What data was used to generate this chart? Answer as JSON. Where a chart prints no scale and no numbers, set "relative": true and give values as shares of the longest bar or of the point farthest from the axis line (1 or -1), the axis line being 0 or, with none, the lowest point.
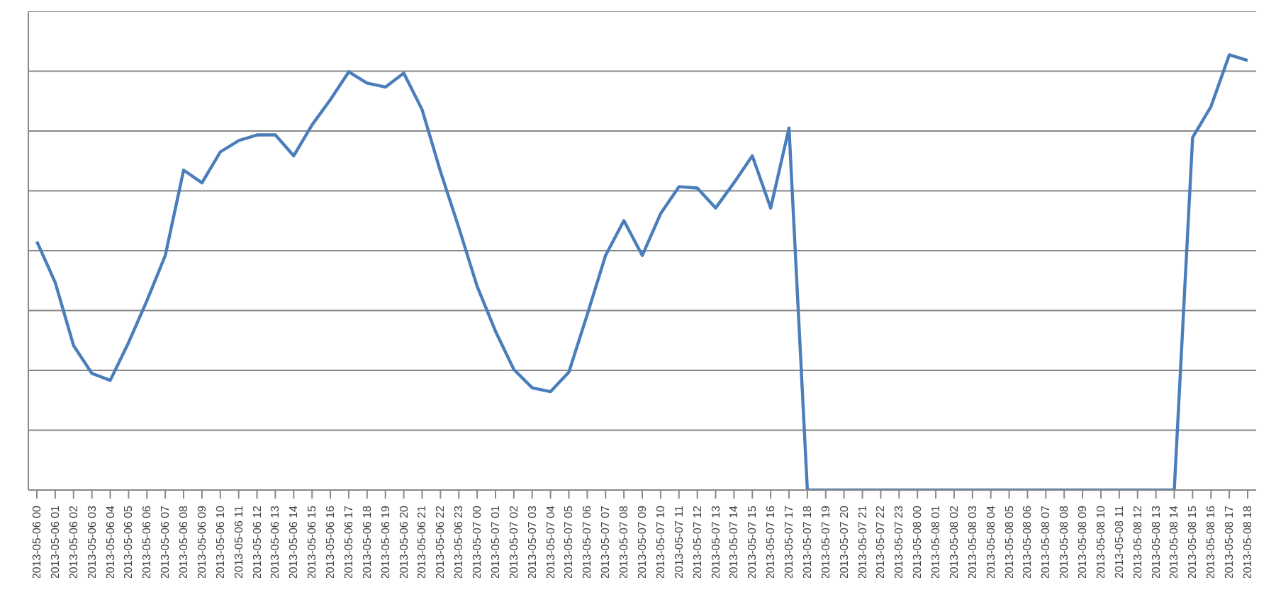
{
  "chart_data": {
    "type": "line",
    "relative": true,
    "grid": "y",
    "marker": "none",
    "line_style": "solid",
    "categories": [
      "2013-05-06 00",
      "2013-05-06 01",
      "2013-05-06 02",
      "2013-05-06 03",
      "2013-05-06 04",
      "2013-05-06 05",
      "2013-05-06 06",
      "2013-05-06 07",
      "2013-05-06 08",
      "2013-05-06 09",
      "2013-05-06 10",
      "2013-05-06 11",
      "2013-05-06 12",
      "2013-05-06 13",
      "2013-05-06 14",
      "2013-05-06 15",
      "2013-05-06 16",
      "2013-05-06 17",
      "2013-05-06 18",
      "2013-05-06 19",
      "2013-05-06 20",
      "2013-05-06 21",
      "2013-05-06 22",
      "2013-05-06 23",
      "2013-05-07 00",
      "2013-05-07 01",
      "2013-05-07 02",
      "2013-05-07 03",
      "2013-05-07 04",
      "2013-05-07 05",
      "2013-05-07 06",
      "2013-05-07 07",
      "2013-05-07 08",
      "2013-05-07 09",
      "2013-05-07 10",
      "2013-05-07 11",
      "2013-05-07 12",
      "2013-05-07 13",
      "2013-05-07 14",
      "2013-05-07 15",
      "2013-05-07 16",
      "2013-05-07 17",
      "2013-05-07 18",
      "2013-05-07 19",
      "2013-05-07 20",
      "2013-05-07 21",
      "2013-05-07 22",
      "2013-05-07 23",
      "2013-05-08 00",
      "2013-05-08 01",
      "2013-05-08 02",
      "2013-05-08 03",
      "2013-05-08 04",
      "2013-05-08 05",
      "2013-05-08 06",
      "2013-05-08 07",
      "2013-05-08 08",
      "2013-05-08 09",
      "2013-05-08 10",
      "2013-05-08 11",
      "2013-05-08 12",
      "2013-05-08 13",
      "2013-05-08 14",
      "2013-05-08 15",
      "2013-05-08 16",
      "2013-05-08 17",
      "2013-05-08 18"
    ],
    "series": [
      {
        "color": "#4a7ebb",
        "values": [
          0.571,
          0.477,
          0.332,
          0.268,
          0.252,
          0.339,
          0.435,
          0.539,
          0.735,
          0.706,
          0.777,
          0.803,
          0.816,
          0.816,
          0.768,
          0.839,
          0.897,
          0.961,
          0.935,
          0.926,
          0.958,
          0.874,
          0.732,
          0.603,
          0.468,
          0.365,
          0.277,
          0.235,
          0.226,
          0.271,
          0.403,
          0.539,
          0.619,
          0.539,
          0.635,
          0.697,
          0.694,
          0.648,
          0.706,
          0.768,
          0.648,
          0.832,
          0,
          0,
          0,
          0,
          0,
          0,
          0,
          0,
          0,
          0,
          0,
          0,
          0,
          0,
          0,
          0,
          0,
          0,
          0,
          0,
          0,
          0.81,
          0.881,
          1.0,
          0.987
        ]
      }
    ]
  }
}
